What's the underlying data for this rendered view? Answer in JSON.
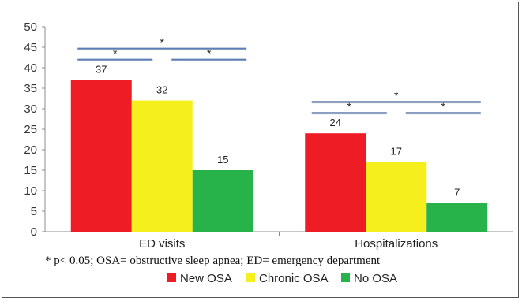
{
  "chart_data": {
    "type": "bar",
    "categories": [
      "ED visits",
      "Hospitalizations"
    ],
    "series": [
      {
        "name": "New OSA",
        "values": [
          37,
          24
        ],
        "color": "#ee1c24"
      },
      {
        "name": "Chronic OSA",
        "values": [
          32,
          17
        ],
        "color": "#f5ef1e"
      },
      {
        "name": "No OSA",
        "values": [
          15,
          7
        ],
        "color": "#27b24a"
      }
    ],
    "ylim": [
      0,
      50
    ],
    "yticks": [
      0,
      5,
      10,
      15,
      20,
      25,
      30,
      35,
      40,
      45,
      50
    ],
    "grid": false,
    "legend_position": "bottom",
    "significance": {
      "marker": "*",
      "line_color": "#5b7fb5",
      "groups": [
        {
          "comparisons": [
            "New OSA vs Chronic OSA",
            "Chronic OSA vs No OSA",
            "New OSA vs No OSA"
          ]
        },
        {
          "comparisons": [
            "New OSA vs Chronic OSA",
            "Chronic OSA vs No OSA",
            "New OSA vs No OSA"
          ]
        }
      ]
    },
    "footnote": "* p< 0.05; OSA= obstructive sleep apnea; ED= emergency department"
  }
}
